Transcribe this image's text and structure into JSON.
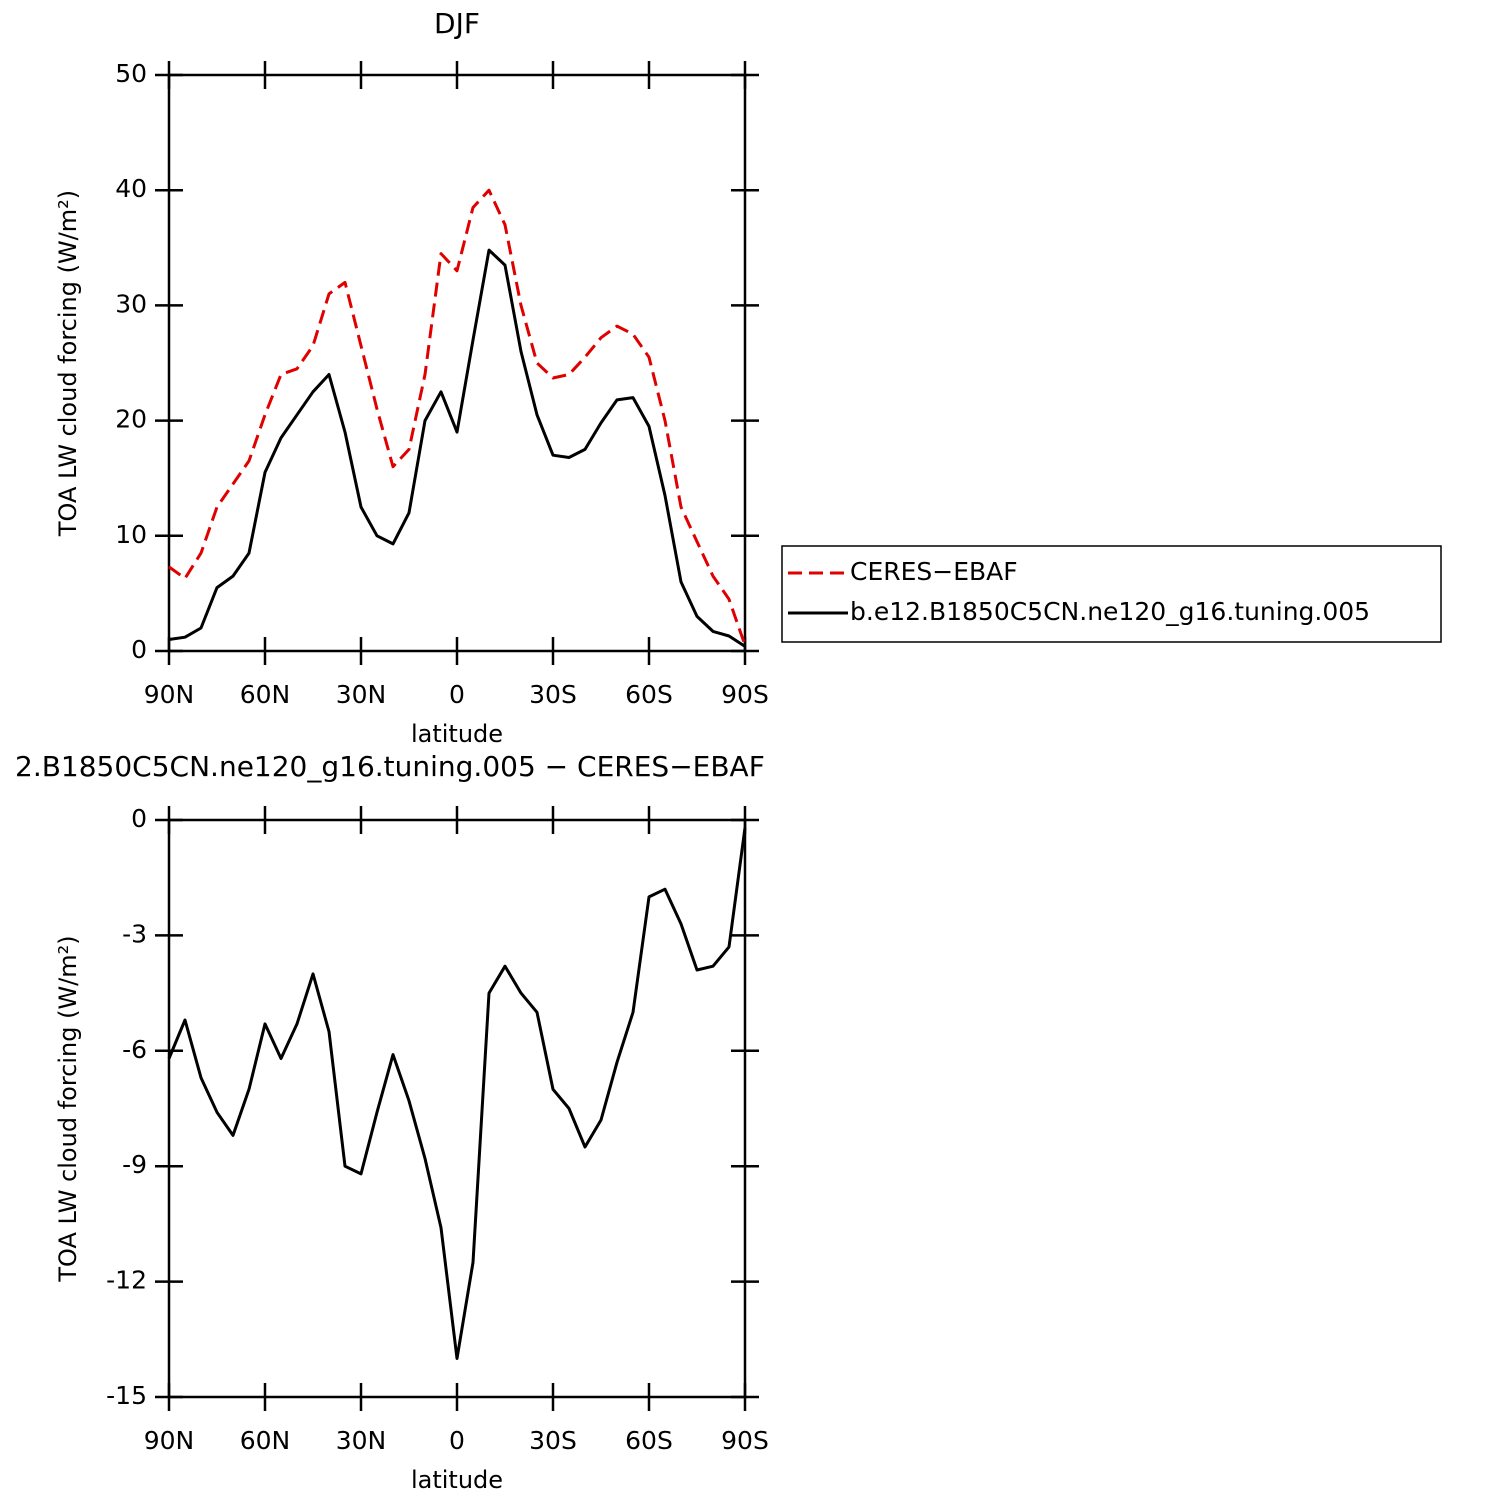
{
  "chart_data": [
    {
      "type": "line",
      "title": "DJF",
      "xlabel": "latitude",
      "ylabel": "TOA LW cloud forcing (W/m²)",
      "x": [
        90,
        85,
        80,
        75,
        70,
        65,
        60,
        55,
        50,
        45,
        40,
        35,
        30,
        25,
        20,
        15,
        10,
        5,
        0,
        -5,
        -10,
        -15,
        -20,
        -25,
        -30,
        -35,
        -40,
        -45,
        -50,
        -55,
        -60,
        -65,
        -70,
        -75,
        -80,
        -85,
        -90
      ],
      "xlim": [
        90,
        -90
      ],
      "xticks": [
        {
          "value": 90,
          "label": "90N"
        },
        {
          "value": 60,
          "label": "60N"
        },
        {
          "value": 30,
          "label": "30N"
        },
        0,
        {
          "value": -30,
          "label": "30S"
        },
        {
          "value": -60,
          "label": "60S"
        },
        {
          "value": -90,
          "label": "90S"
        }
      ],
      "ylim": [
        0,
        50
      ],
      "yticks": [
        0,
        10,
        20,
        30,
        40,
        50
      ],
      "series": [
        {
          "name": "CERES−EBAF",
          "color": "#e00000",
          "linestyle": "dashed",
          "values": [
            7.3,
            6.3,
            8.5,
            12.5,
            14.5,
            16.5,
            20.5,
            24,
            24.5,
            26.5,
            31,
            32,
            26.5,
            21,
            16,
            17.5,
            24,
            34.5,
            33,
            38.5,
            40,
            37,
            30,
            25,
            23.7,
            24,
            25.5,
            27.2,
            28.2,
            27.5,
            25.5,
            20,
            12.5,
            9.5,
            6.5,
            4.5,
            0.5
          ]
        },
        {
          "name": "b.e12.B1850C5CN.ne120_g16.tuning.005",
          "color": "#000000",
          "linestyle": "solid",
          "values": [
            1.0,
            1.2,
            2.0,
            5.5,
            6.5,
            8.5,
            15.5,
            18.5,
            20.5,
            22.5,
            24,
            19,
            12.5,
            10,
            9.3,
            12,
            20,
            22.5,
            19,
            27,
            34.8,
            33.5,
            26,
            20.5,
            17,
            16.8,
            17.5,
            19.8,
            21.8,
            22,
            19.5,
            13.5,
            6,
            3,
            1.7,
            1.3,
            0.4
          ]
        }
      ]
    },
    {
      "type": "line",
      "title": "2.B1850C5CN.ne120_g16.tuning.005 − CERES−EBAF",
      "xlabel": "latitude",
      "ylabel": "TOA LW cloud forcing (W/m²)",
      "x": [
        90,
        85,
        80,
        75,
        70,
        65,
        60,
        55,
        50,
        45,
        40,
        35,
        30,
        25,
        20,
        15,
        10,
        5,
        0,
        -5,
        -10,
        -15,
        -20,
        -25,
        -30,
        -35,
        -40,
        -45,
        -50,
        -55,
        -60,
        -65,
        -70,
        -75,
        -80,
        -85,
        -90
      ],
      "xlim": [
        90,
        -90
      ],
      "xticks": [
        {
          "value": 90,
          "label": "90N"
        },
        {
          "value": 60,
          "label": "60N"
        },
        {
          "value": 30,
          "label": "30N"
        },
        0,
        {
          "value": -30,
          "label": "30S"
        },
        {
          "value": -60,
          "label": "60S"
        },
        {
          "value": -90,
          "label": "90S"
        }
      ],
      "ylim": [
        -15,
        0
      ],
      "yticks": [
        -15,
        -12,
        -9,
        -6,
        -3,
        0
      ],
      "series": [
        {
          "color": "#000000",
          "linestyle": "solid",
          "values": [
            -6.2,
            -5.2,
            -6.7,
            -7.6,
            -8.2,
            -7.0,
            -5.3,
            -6.2,
            -5.3,
            -4.0,
            -5.5,
            -9.0,
            -9.2,
            -7.6,
            -6.1,
            -7.3,
            -8.8,
            -10.6,
            -14.0,
            -11.5,
            -4.5,
            -3.8,
            -4.5,
            -5.0,
            -7.0,
            -7.5,
            -8.5,
            -7.8,
            -6.3,
            -5.0,
            -2.0,
            -1.8,
            -2.7,
            -3.9,
            -3.8,
            -3.3,
            -0.2
          ]
        }
      ]
    }
  ]
}
